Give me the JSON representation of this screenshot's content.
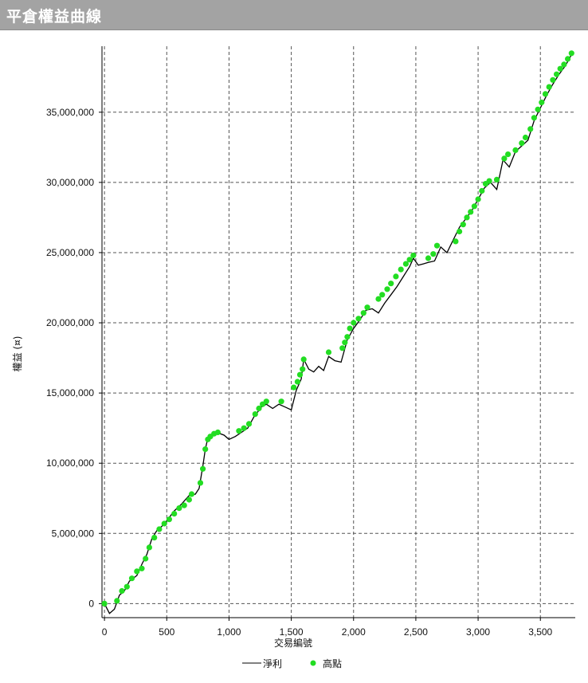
{
  "window": {
    "title": "平倉權益曲線"
  },
  "chart_data": {
    "type": "line",
    "xlabel": "交易編號",
    "ylabel": "權益 (¤)",
    "xlim": [
      -20,
      3780
    ],
    "ylim": [
      -1000000,
      39700000
    ],
    "x_ticks": [
      0,
      500,
      1000,
      1500,
      2000,
      2500,
      3000,
      3500
    ],
    "x_tick_labels": [
      "0",
      "500",
      "1,000",
      "1,500",
      "2,000",
      "2,500",
      "3,000",
      "3,500"
    ],
    "y_ticks": [
      0,
      5000000,
      10000000,
      15000000,
      20000000,
      25000000,
      30000000,
      35000000
    ],
    "y_tick_labels": [
      "0",
      "5,000,000",
      "10,000,000",
      "15,000,000",
      "20,000,000",
      "25,000,000",
      "30,000,000",
      "35,000,000"
    ],
    "grid": true,
    "legend_position": "bottom-center",
    "series": [
      {
        "name": "淨利",
        "style": "line",
        "color": "#000000",
        "x": [
          0,
          40,
          80,
          120,
          160,
          200,
          260,
          300,
          340,
          380,
          420,
          460,
          500,
          560,
          620,
          680,
          730,
          760,
          790,
          810,
          830,
          860,
          900,
          960,
          1000,
          1050,
          1100,
          1150,
          1200,
          1260,
          1300,
          1350,
          1400,
          1450,
          1500,
          1540,
          1580,
          1600,
          1640,
          1680,
          1720,
          1760,
          1800,
          1850,
          1900,
          1950,
          2000,
          2050,
          2100,
          2150,
          2200,
          2250,
          2300,
          2350,
          2400,
          2450,
          2480,
          2520,
          2560,
          2600,
          2650,
          2700,
          2750,
          2800,
          2850,
          2900,
          2950,
          3000,
          3050,
          3100,
          3150,
          3200,
          3250,
          3300,
          3350,
          3400,
          3450,
          3500,
          3550,
          3600,
          3650,
          3700,
          3750
        ],
        "y": [
          0,
          -700000,
          -400000,
          600000,
          900000,
          1600000,
          2000000,
          2800000,
          3500000,
          4600000,
          5200000,
          5500000,
          5900000,
          6600000,
          7100000,
          7700000,
          7800000,
          8200000,
          9800000,
          11000000,
          11800000,
          12000000,
          12200000,
          12000000,
          11700000,
          11900000,
          12200000,
          12500000,
          13300000,
          14000000,
          14200000,
          13900000,
          14200000,
          14000000,
          13800000,
          15200000,
          16000000,
          17400000,
          16700000,
          16500000,
          16900000,
          16600000,
          17600000,
          17300000,
          17200000,
          18800000,
          19600000,
          20200000,
          20900000,
          21000000,
          20700000,
          21400000,
          22000000,
          22600000,
          23300000,
          24000000,
          24600000,
          24100000,
          24200000,
          24300000,
          24400000,
          25400000,
          25000000,
          25900000,
          26800000,
          27400000,
          28000000,
          28800000,
          29600000,
          30000000,
          29500000,
          31600000,
          31100000,
          32200000,
          32600000,
          33000000,
          34400000,
          35300000,
          36200000,
          37000000,
          37700000,
          38300000,
          39100000
        ]
      },
      {
        "name": "高點",
        "style": "scatter",
        "color": "#22dd22",
        "x": [
          0,
          100,
          140,
          180,
          220,
          260,
          300,
          330,
          360,
          400,
          440,
          480,
          520,
          560,
          600,
          640,
          680,
          700,
          770,
          790,
          810,
          830,
          850,
          880,
          910,
          1080,
          1120,
          1160,
          1210,
          1240,
          1270,
          1300,
          1420,
          1520,
          1550,
          1570,
          1590,
          1600,
          1800,
          1910,
          1930,
          1950,
          1970,
          2000,
          2040,
          2080,
          2110,
          2200,
          2230,
          2270,
          2300,
          2340,
          2380,
          2420,
          2450,
          2480,
          2600,
          2640,
          2670,
          2820,
          2850,
          2880,
          2910,
          2940,
          2970,
          3000,
          3030,
          3060,
          3090,
          3150,
          3210,
          3240,
          3300,
          3350,
          3380,
          3420,
          3450,
          3480,
          3510,
          3540,
          3570,
          3600,
          3630,
          3660,
          3690,
          3720,
          3750
        ],
        "y": [
          0,
          200000,
          900000,
          1200000,
          1800000,
          2300000,
          2500000,
          3200000,
          4000000,
          4700000,
          5300000,
          5700000,
          6000000,
          6400000,
          6800000,
          7000000,
          7400000,
          7800000,
          8600000,
          9600000,
          11000000,
          11700000,
          11900000,
          12100000,
          12200000,
          12300000,
          12500000,
          12800000,
          13500000,
          13900000,
          14200000,
          14400000,
          14400000,
          15400000,
          15800000,
          16300000,
          16700000,
          17400000,
          17900000,
          18200000,
          18600000,
          19000000,
          19600000,
          20000000,
          20300000,
          20700000,
          21100000,
          21700000,
          22000000,
          22400000,
          22800000,
          23300000,
          23800000,
          24200000,
          24500000,
          24800000,
          24600000,
          24900000,
          25500000,
          25800000,
          26500000,
          27000000,
          27500000,
          27900000,
          28300000,
          28800000,
          29400000,
          29900000,
          30100000,
          30200000,
          31700000,
          32000000,
          32300000,
          32800000,
          33200000,
          33800000,
          34600000,
          35200000,
          35700000,
          36300000,
          36800000,
          37300000,
          37700000,
          38100000,
          38400000,
          38800000,
          39200000
        ]
      }
    ]
  }
}
